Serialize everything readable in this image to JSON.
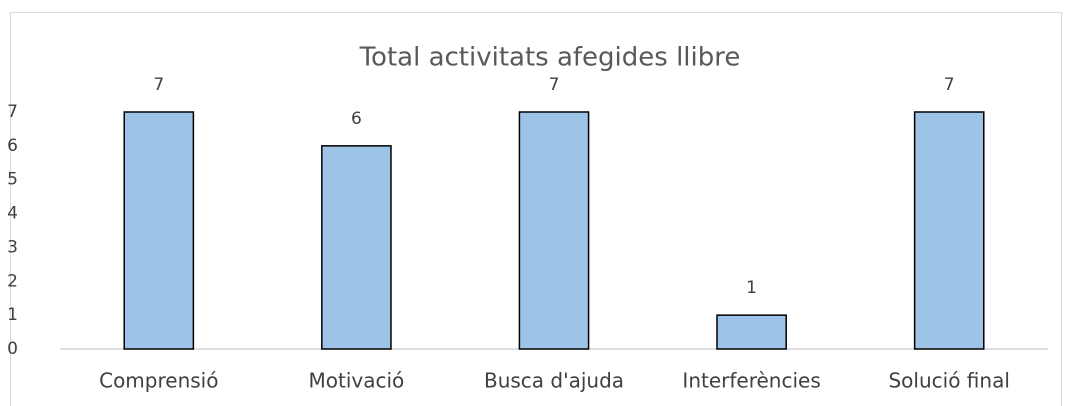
{
  "chart_data": {
    "type": "bar",
    "title": "Total activitats afegides llibre",
    "categories": [
      "Comprensió",
      "Motivació",
      "Busca d'ajuda",
      "Interferències",
      "Solució final"
    ],
    "values": [
      7,
      6,
      7,
      1,
      7
    ],
    "color": "#9dc3e6",
    "ylim": [
      0,
      7
    ],
    "yticks": [
      0,
      1,
      2,
      3,
      4,
      5,
      6,
      7
    ],
    "grid": false
  }
}
